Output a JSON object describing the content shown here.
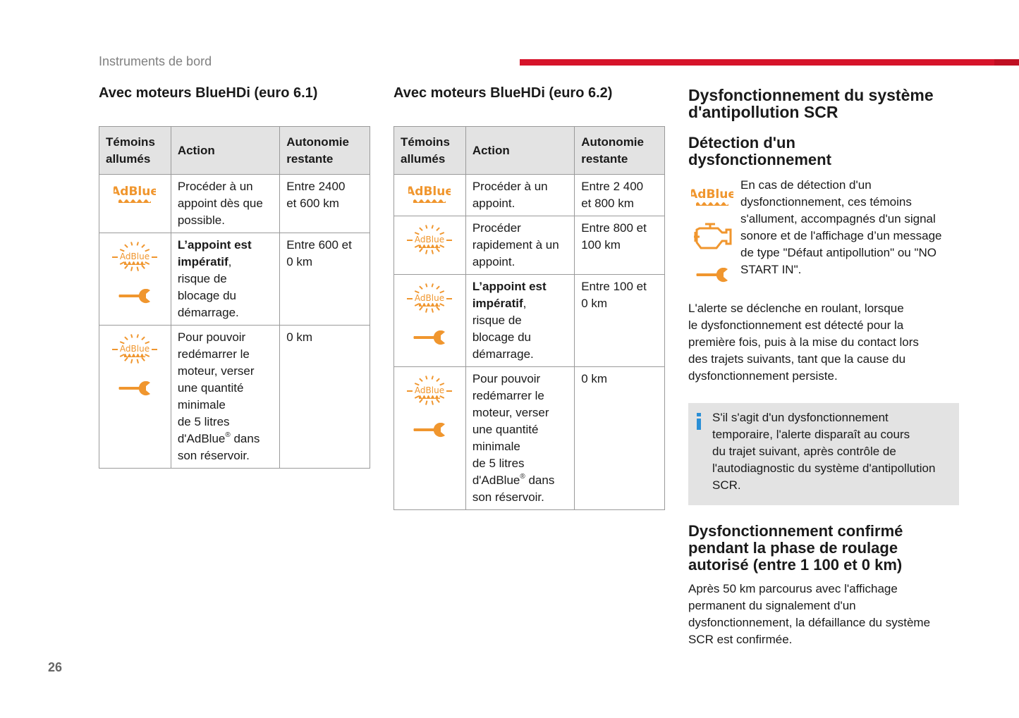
{
  "header": {
    "section": "Instruments de bord",
    "page_number": "26",
    "accent": "#d6132a"
  },
  "icon_color": "#f0962e",
  "tables": [
    {
      "title": "Avec moteurs BlueHDi (euro 6.1)",
      "headers": [
        "Témoins\nallumés",
        "Action",
        "Autonomie\nrestante"
      ],
      "rows": [
        {
          "icons": [
            "adblue"
          ],
          "bold": "",
          "text": "Procéder à un\nappoint dès que\npossible.",
          "sup": "",
          "post": "",
          "range": "Entre 2400\net 600 km"
        },
        {
          "icons": [
            "adblue-flashing",
            "wrench"
          ],
          "bold": "L’appoint est\nimpératif",
          "text": ",\nrisque de\nblocage du\ndémarrage.",
          "sup": "",
          "post": "",
          "range": "Entre 600 et\n0 km"
        },
        {
          "icons": [
            "adblue-flashing",
            "wrench"
          ],
          "bold": "",
          "text": "Pour pouvoir\nredémarrer le\nmoteur, verser\nune quantité\nminimale\nde 5 litres\nd'AdBlue",
          "sup": "®",
          "post": " dans\nson réservoir.",
          "range": "0 km"
        }
      ]
    },
    {
      "title": "Avec moteurs BlueHDi (euro 6.2)",
      "headers": [
        "Témoins\nallumés",
        "Action",
        "Autonomie\nrestante"
      ],
      "rows": [
        {
          "icons": [
            "adblue"
          ],
          "bold": "",
          "text": "Procéder à un\nappoint.",
          "sup": "",
          "post": "",
          "range": "Entre 2 400\net 800 km"
        },
        {
          "icons": [
            "adblue-flashing"
          ],
          "bold": "",
          "text": "Procéder\nrapidement à un\nappoint.",
          "sup": "",
          "post": "",
          "range": "Entre 800 et\n100 km"
        },
        {
          "icons": [
            "adblue-flashing",
            "wrench"
          ],
          "bold": "L’appoint est\nimpératif",
          "text": ",\nrisque de\nblocage du\ndémarrage.",
          "sup": "",
          "post": "",
          "range": "Entre 100 et\n0 km"
        },
        {
          "icons": [
            "adblue-flashing",
            "wrench"
          ],
          "bold": "",
          "text": "Pour pouvoir\nredémarrer le\nmoteur, verser\nune quantité\nminimale\nde 5 litres\nd'AdBlue",
          "sup": "®",
          "post": " dans\nson réservoir.",
          "range": "0 km"
        }
      ]
    }
  ],
  "right": {
    "h1": "Dysfonctionnement du système\nd'antipollution SCR",
    "h2": "Détection d'un\ndysfonctionnement",
    "detect_text": "En cas de détection d'un\ndysfonctionnement, ces témoins\ns'allument, accompagnés d'un signal\nsonore et de l'affichage d’un message\nde type \"Défaut antipollution\" ou \"NO\nSTART IN\".",
    "alert_text": "L'alerte se déclenche en roulant, lorsque\nle dysfonctionnement est détecté pour la\npremière fois, puis à la mise du contact lors\ndes trajets suivants, tant que la cause du\ndysfonctionnement persiste.",
    "info_text": "S'il s'agit d'un dysfonctionnement\ntemporaire, l'alerte disparaît au cours\ndu trajet suivant, après contrôle de\nl'autodiagnostic du système d'antipollution\nSCR.",
    "h3": "Dysfonctionnement confirmé\npendant la phase de roulage\nautorisé (entre 1 100 et 0 km)",
    "confirm_text": "Après 50 km parcourus avec l'affichage\npermanent du signalement d'un\ndysfonctionnement, la défaillance du système\nSCR est confirmée."
  }
}
